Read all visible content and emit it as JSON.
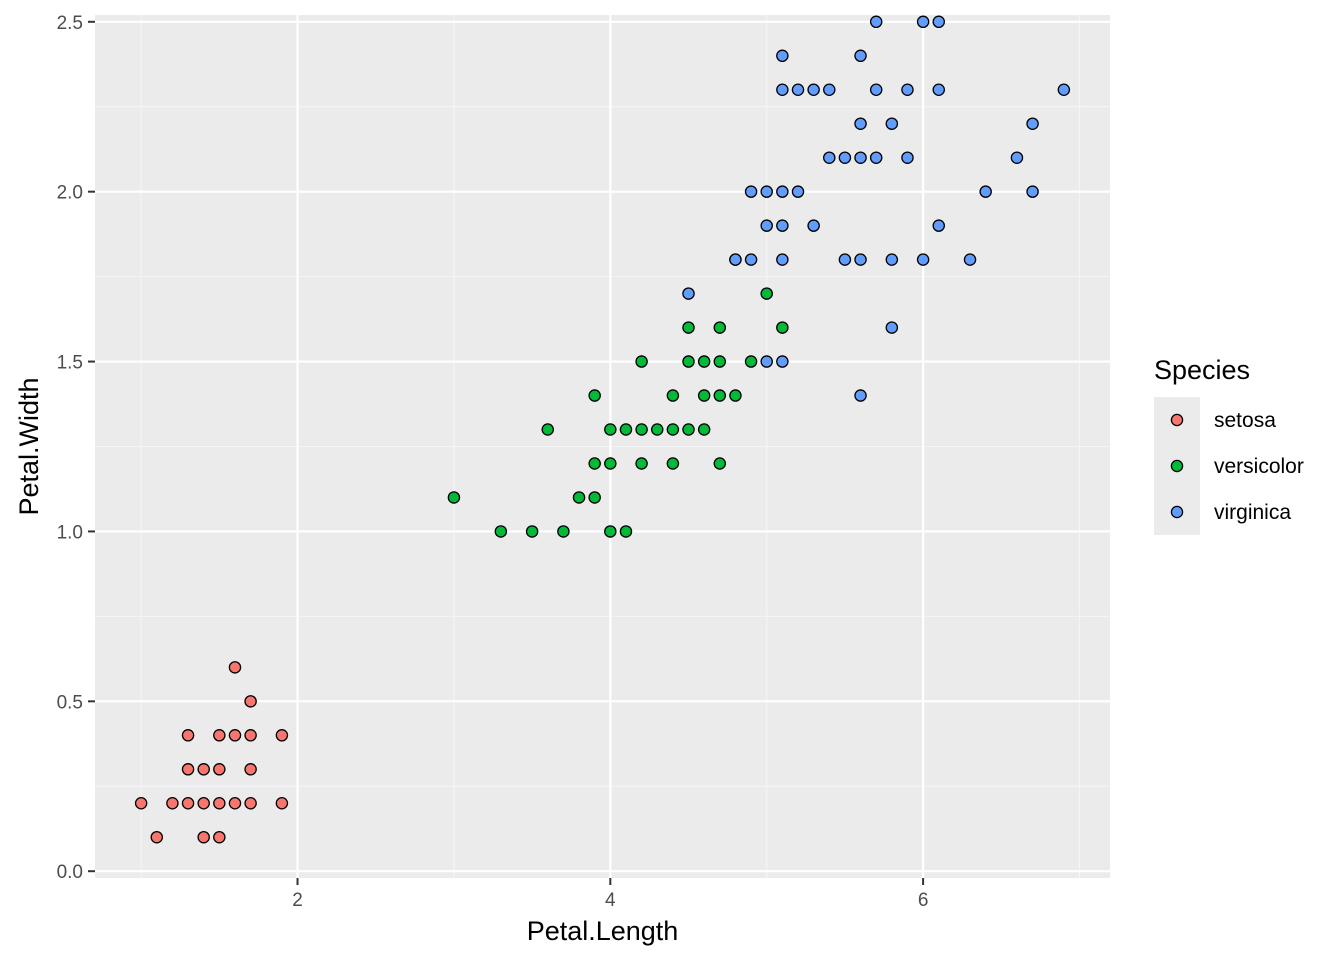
{
  "chart_data": {
    "type": "scatter",
    "xlabel": "Petal.Length",
    "ylabel": "Petal.Width",
    "xlim": [
      0.705,
      7.195
    ],
    "ylim": [
      -0.02,
      2.52
    ],
    "x_ticks": [
      2,
      4,
      6
    ],
    "y_ticks": [
      0.0,
      0.5,
      1.0,
      1.5,
      2.0,
      2.5
    ],
    "x_tick_labels": [
      "2",
      "4",
      "6"
    ],
    "y_tick_labels": [
      "0.0",
      "0.5",
      "1.0",
      "1.5",
      "2.0",
      "2.5"
    ],
    "grid": true,
    "legend": {
      "title": "Species",
      "placement": "right"
    },
    "series": [
      {
        "name": "setosa",
        "color": "#F8766D",
        "points": [
          [
            1.0,
            0.2
          ],
          [
            1.1,
            0.1
          ],
          [
            1.2,
            0.2
          ],
          [
            1.3,
            0.2
          ],
          [
            1.3,
            0.3
          ],
          [
            1.3,
            0.4
          ],
          [
            1.4,
            0.1
          ],
          [
            1.4,
            0.2
          ],
          [
            1.4,
            0.3
          ],
          [
            1.5,
            0.1
          ],
          [
            1.5,
            0.2
          ],
          [
            1.5,
            0.3
          ],
          [
            1.5,
            0.4
          ],
          [
            1.6,
            0.2
          ],
          [
            1.6,
            0.4
          ],
          [
            1.6,
            0.6
          ],
          [
            1.7,
            0.2
          ],
          [
            1.7,
            0.3
          ],
          [
            1.7,
            0.4
          ],
          [
            1.7,
            0.5
          ],
          [
            1.9,
            0.2
          ],
          [
            1.9,
            0.4
          ]
        ]
      },
      {
        "name": "versicolor",
        "color": "#00BA38",
        "points": [
          [
            3.0,
            1.1
          ],
          [
            3.3,
            1.0
          ],
          [
            3.5,
            1.0
          ],
          [
            3.6,
            1.3
          ],
          [
            3.7,
            1.0
          ],
          [
            3.8,
            1.1
          ],
          [
            3.9,
            1.1
          ],
          [
            3.9,
            1.2
          ],
          [
            3.9,
            1.4
          ],
          [
            4.0,
            1.0
          ],
          [
            4.0,
            1.2
          ],
          [
            4.0,
            1.3
          ],
          [
            4.1,
            1.0
          ],
          [
            4.1,
            1.3
          ],
          [
            4.2,
            1.2
          ],
          [
            4.2,
            1.3
          ],
          [
            4.2,
            1.5
          ],
          [
            4.3,
            1.3
          ],
          [
            4.4,
            1.2
          ],
          [
            4.4,
            1.3
          ],
          [
            4.4,
            1.4
          ],
          [
            4.5,
            1.3
          ],
          [
            4.5,
            1.5
          ],
          [
            4.5,
            1.6
          ],
          [
            4.6,
            1.3
          ],
          [
            4.6,
            1.4
          ],
          [
            4.6,
            1.5
          ],
          [
            4.7,
            1.2
          ],
          [
            4.7,
            1.4
          ],
          [
            4.7,
            1.5
          ],
          [
            4.7,
            1.6
          ],
          [
            4.8,
            1.4
          ],
          [
            4.8,
            1.8
          ],
          [
            4.9,
            1.5
          ],
          [
            5.0,
            1.7
          ],
          [
            5.1,
            1.6
          ]
        ]
      },
      {
        "name": "virginica",
        "color": "#619CFF",
        "points": [
          [
            4.5,
            1.7
          ],
          [
            4.8,
            1.8
          ],
          [
            4.9,
            1.8
          ],
          [
            4.9,
            2.0
          ],
          [
            5.0,
            1.5
          ],
          [
            5.0,
            1.9
          ],
          [
            5.0,
            2.0
          ],
          [
            5.1,
            1.5
          ],
          [
            5.1,
            1.8
          ],
          [
            5.1,
            1.9
          ],
          [
            5.1,
            2.0
          ],
          [
            5.1,
            2.3
          ],
          [
            5.1,
            2.4
          ],
          [
            5.2,
            2.0
          ],
          [
            5.2,
            2.3
          ],
          [
            5.3,
            1.9
          ],
          [
            5.3,
            2.3
          ],
          [
            5.4,
            2.1
          ],
          [
            5.4,
            2.3
          ],
          [
            5.5,
            1.8
          ],
          [
            5.5,
            2.1
          ],
          [
            5.6,
            1.4
          ],
          [
            5.6,
            1.8
          ],
          [
            5.6,
            2.1
          ],
          [
            5.6,
            2.2
          ],
          [
            5.6,
            2.4
          ],
          [
            5.7,
            2.1
          ],
          [
            5.7,
            2.3
          ],
          [
            5.7,
            2.5
          ],
          [
            5.8,
            1.6
          ],
          [
            5.8,
            1.8
          ],
          [
            5.8,
            2.2
          ],
          [
            5.9,
            2.1
          ],
          [
            5.9,
            2.3
          ],
          [
            6.0,
            1.8
          ],
          [
            6.0,
            2.5
          ],
          [
            6.1,
            1.9
          ],
          [
            6.1,
            2.3
          ],
          [
            6.1,
            2.5
          ],
          [
            6.3,
            1.8
          ],
          [
            6.4,
            2.0
          ],
          [
            6.6,
            2.1
          ],
          [
            6.7,
            2.0
          ],
          [
            6.7,
            2.2
          ],
          [
            6.9,
            2.3
          ]
        ]
      }
    ]
  }
}
